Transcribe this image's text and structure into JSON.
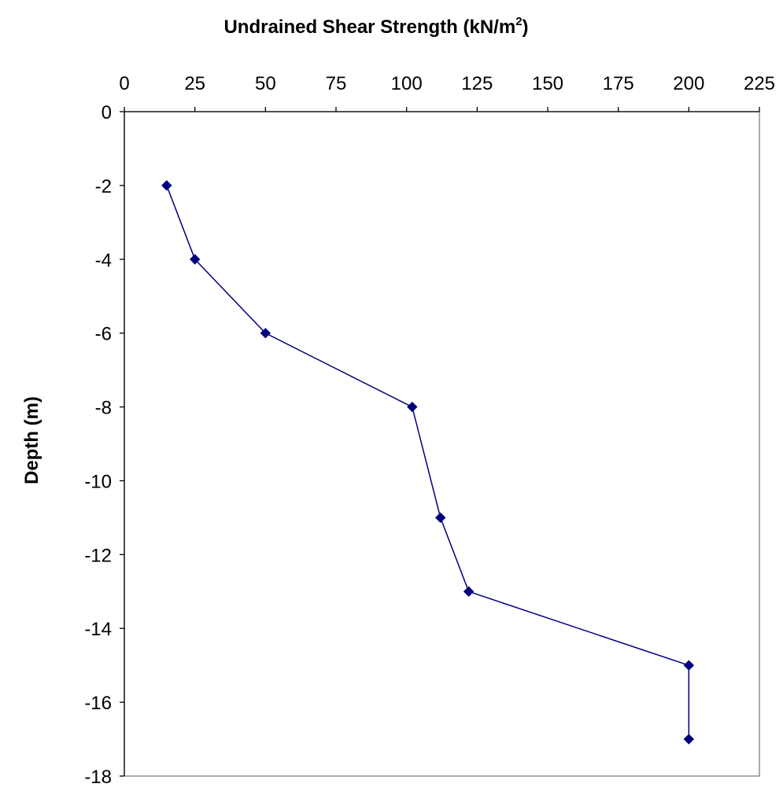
{
  "chart_data": {
    "type": "line",
    "title": "",
    "xlabel": "Undrained Shear Strength (kN/m",
    "xlabel_superscript": "2",
    "xlabel_suffix": ")",
    "ylabel": "Depth (m)",
    "xlim": [
      0,
      225
    ],
    "ylim": [
      -18,
      0
    ],
    "x_ticks": [
      0,
      25,
      50,
      75,
      100,
      125,
      150,
      175,
      200,
      225
    ],
    "y_ticks": [
      0,
      -2,
      -4,
      -6,
      -8,
      -10,
      -12,
      -14,
      -16,
      -18
    ],
    "x_axis_position": "top",
    "grid": false,
    "legend": "none",
    "marker": "diamond",
    "series": [
      {
        "color": "#000080",
        "points": [
          {
            "x": 15,
            "y": -2
          },
          {
            "x": 25,
            "y": -4
          },
          {
            "x": 50,
            "y": -6
          },
          {
            "x": 102,
            "y": -8
          },
          {
            "x": 112,
            "y": -11
          },
          {
            "x": 122,
            "y": -13
          },
          {
            "x": 200,
            "y": -15
          },
          {
            "x": 200,
            "y": -17
          }
        ]
      }
    ]
  }
}
